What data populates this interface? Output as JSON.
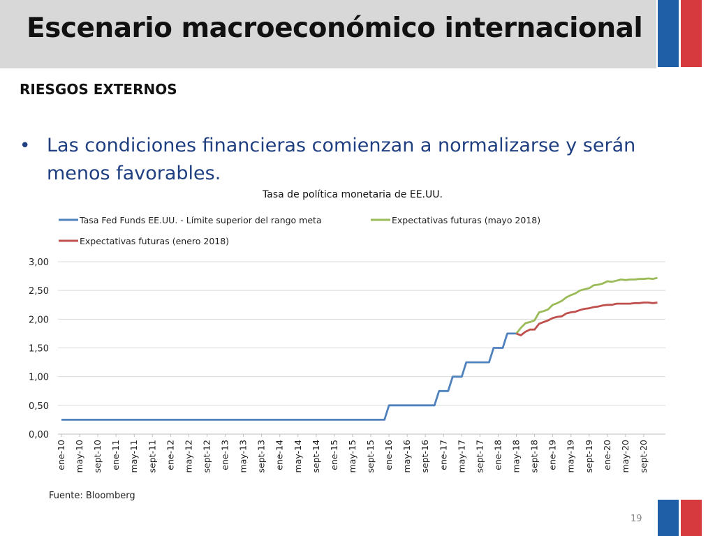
{
  "slide": {
    "title": "Escenario macroeconómico internacional",
    "section": "RIESGOS EXTERNOS",
    "bullet_symbol": "•",
    "bullet": "Las condiciones financieras comienzan a normalizarse y serán menos favorables.",
    "source": "Fuente: Bloomberg",
    "page_number": "19",
    "colors": {
      "flag_blue": "#1f5fa8",
      "flag_red": "#d63a3f",
      "title_bar": "#d8d8d8",
      "bullet_text": "#1f3f80"
    }
  },
  "chart_data": {
    "type": "line",
    "title": "Tasa de política monetaria de EE.UU.",
    "xlabel": "",
    "ylabel": "",
    "ylim": [
      0,
      3
    ],
    "yticks": [
      "0,00",
      "0,50",
      "1,00",
      "1,50",
      "2,00",
      "2,50",
      "3,00"
    ],
    "grid": true,
    "legend_position": "top",
    "x_tick_labels": [
      "ene-10",
      "may-10",
      "sept-10",
      "ene-11",
      "may-11",
      "sept-11",
      "ene-12",
      "may-12",
      "sept-12",
      "ene-13",
      "may-13",
      "sept-13",
      "ene-14",
      "may-14",
      "sept-14",
      "ene-15",
      "may-15",
      "sept-15",
      "ene-16",
      "may-16",
      "sept-16",
      "ene-17",
      "may-17",
      "sept-17",
      "ene-18",
      "may-18",
      "sept-18",
      "ene-19",
      "may-19",
      "sept-19",
      "ene-20",
      "may-20",
      "sept-20"
    ],
    "series": [
      {
        "name": "Tasa Fed Funds EE.UU. - Límite superior del rango meta",
        "color": "#4f81bd",
        "x": [
          "2010-01",
          "2015-12",
          "2016-01",
          "2016-11",
          "2016-12",
          "2017-02",
          "2017-03",
          "2017-05",
          "2017-06",
          "2017-11",
          "2017-12",
          "2018-02",
          "2018-03",
          "2018-05"
        ],
        "values": [
          0.25,
          0.25,
          0.5,
          0.5,
          0.75,
          0.75,
          1.0,
          1.0,
          1.25,
          1.25,
          1.5,
          1.5,
          1.75,
          1.75
        ]
      },
      {
        "name": "Expectativas futuras (mayo 2018)",
        "color": "#9bbb59",
        "x": [
          "2018-05",
          "2018-06",
          "2018-07",
          "2018-08",
          "2018-09",
          "2018-10",
          "2018-11",
          "2018-12",
          "2019-01",
          "2019-02",
          "2019-03",
          "2019-04",
          "2019-05",
          "2019-06",
          "2019-07",
          "2019-08",
          "2019-09",
          "2019-10",
          "2019-11",
          "2019-12",
          "2020-01",
          "2020-02",
          "2020-03",
          "2020-04",
          "2020-05",
          "2020-06",
          "2020-07",
          "2020-08",
          "2020-09",
          "2020-10",
          "2020-11",
          "2020-12"
        ],
        "values": [
          1.75,
          1.85,
          1.93,
          1.95,
          1.98,
          2.12,
          2.14,
          2.17,
          2.25,
          2.28,
          2.32,
          2.38,
          2.42,
          2.45,
          2.5,
          2.52,
          2.54,
          2.59,
          2.6,
          2.62,
          2.66,
          2.65,
          2.67,
          2.69,
          2.68,
          2.69,
          2.69,
          2.7,
          2.7,
          2.71,
          2.7,
          2.72
        ]
      },
      {
        "name": "Expectativas futuras (enero 2018)",
        "color": "#c0504d",
        "x": [
          "2018-05",
          "2018-06",
          "2018-07",
          "2018-08",
          "2018-09",
          "2018-10",
          "2018-11",
          "2018-12",
          "2019-01",
          "2019-02",
          "2019-03",
          "2019-04",
          "2019-05",
          "2019-06",
          "2019-07",
          "2019-08",
          "2019-09",
          "2019-10",
          "2019-11",
          "2019-12",
          "2020-01",
          "2020-02",
          "2020-03",
          "2020-04",
          "2020-05",
          "2020-06",
          "2020-07",
          "2020-08",
          "2020-09",
          "2020-10",
          "2020-11",
          "2020-12"
        ],
        "values": [
          1.75,
          1.72,
          1.78,
          1.82,
          1.82,
          1.92,
          1.95,
          1.98,
          2.02,
          2.04,
          2.05,
          2.1,
          2.12,
          2.13,
          2.16,
          2.18,
          2.19,
          2.21,
          2.22,
          2.24,
          2.25,
          2.25,
          2.27,
          2.27,
          2.27,
          2.27,
          2.28,
          2.28,
          2.29,
          2.29,
          2.28,
          2.29
        ]
      }
    ]
  }
}
